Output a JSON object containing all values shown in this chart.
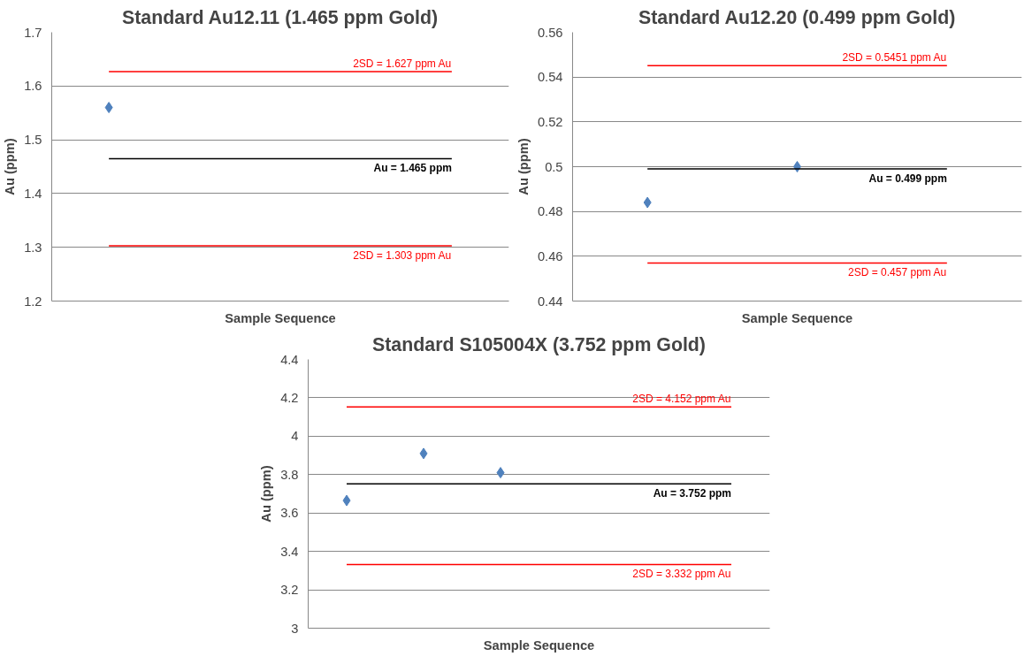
{
  "chart_data": [
    {
      "type": "scatter",
      "title": "Standard Au12.11 (1.465 ppm Gold)",
      "xlabel": "Sample Sequence",
      "ylabel": "Au (ppm)",
      "categories": [
        null,
        null,
        null,
        null
      ],
      "ylim": [
        1.2,
        1.7
      ],
      "yticks": [
        1.2,
        1.3,
        1.4,
        1.5,
        1.6,
        1.7
      ],
      "grid": "y",
      "tick_labels": "y",
      "marker": "diamond",
      "series": [
        {
          "color": "#4f81bd",
          "values": [
            1.56,
            null,
            null,
            null
          ]
        }
      ],
      "ref_lines": [
        {
          "axis": "y",
          "value": 1.627,
          "label": "2SD = 1.627 ppm Au",
          "color": "#ff0000"
        },
        {
          "axis": "y",
          "value": 1.465,
          "label": "Au = 1.465 ppm",
          "color": "#000000"
        },
        {
          "axis": "y",
          "value": 1.303,
          "label": "2SD = 1.303 ppm Au",
          "color": "#ff0000"
        }
      ]
    },
    {
      "type": "scatter",
      "title": "Standard Au12.20 (0.499 ppm Gold)",
      "xlabel": "Sample Sequence",
      "ylabel": "Au (ppm)",
      "categories": [
        null,
        null,
        null
      ],
      "ylim": [
        0.44,
        0.56
      ],
      "yticks": [
        0.44,
        0.46,
        0.48,
        0.5,
        0.52,
        0.54,
        0.56
      ],
      "grid": "y",
      "tick_labels": "y",
      "marker": "diamond",
      "series": [
        {
          "color": "#4f81bd",
          "values": [
            0.484,
            0.5,
            null
          ]
        }
      ],
      "ref_lines": [
        {
          "axis": "y",
          "value": 0.5451,
          "label": "2SD = 0.5451 ppm Au",
          "color": "#ff0000"
        },
        {
          "axis": "y",
          "value": 0.499,
          "label": "Au = 0.499 ppm",
          "color": "#000000"
        },
        {
          "axis": "y",
          "value": 0.457,
          "label": "2SD = 0.457 ppm Au",
          "color": "#ff0000"
        }
      ]
    },
    {
      "type": "scatter",
      "title": "Standard S105004X (3.752 ppm Gold)",
      "xlabel": "Sample Sequence",
      "ylabel": "Au (ppm)",
      "categories": [
        null,
        null,
        null,
        null,
        null,
        null
      ],
      "ylim": [
        3,
        4.4
      ],
      "yticks": [
        3,
        3.2,
        3.4,
        3.6,
        3.8,
        4,
        4.2,
        4.4
      ],
      "grid": "y",
      "tick_labels": "y",
      "marker": "diamond",
      "series": [
        {
          "color": "#4f81bd",
          "values": [
            3.665,
            3.91,
            3.81,
            null,
            null,
            null
          ]
        }
      ],
      "ref_lines": [
        {
          "axis": "y",
          "value": 4.152,
          "label": "2SD = 4.152 ppm Au",
          "color": "#ff0000"
        },
        {
          "axis": "y",
          "value": 3.752,
          "label": "Au = 3.752 ppm",
          "color": "#000000"
        },
        {
          "axis": "y",
          "value": 3.332,
          "label": "2SD = 3.332 ppm Au",
          "color": "#ff0000"
        }
      ]
    }
  ]
}
